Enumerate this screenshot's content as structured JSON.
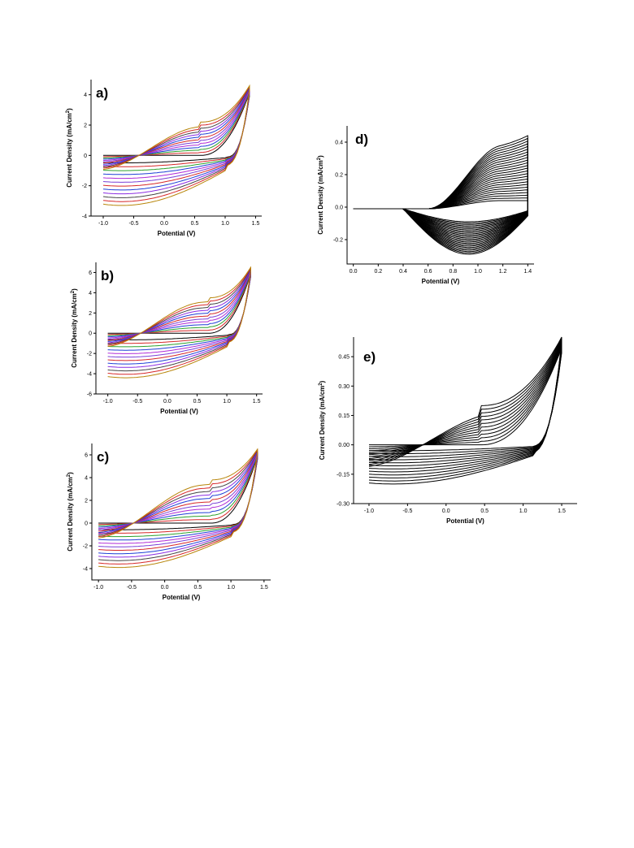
{
  "chart_data": [
    {
      "id": "a",
      "type": "line",
      "panel_label": "a)",
      "xlabel": "Potential (V)",
      "ylabel": "Current Density (mA/cm",
      "ylabel_sup": "2",
      "ylabel_close": ")",
      "xlim": [
        -1.2,
        1.6
      ],
      "ylim": [
        -4,
        5
      ],
      "xticks": [
        -1.0,
        -0.5,
        0.0,
        0.5,
        1.0,
        1.5
      ],
      "xtick_labels": [
        "-1.0",
        "-0.5",
        "0.0",
        "0.5",
        "1.0",
        "1.5"
      ],
      "yticks": [
        -4,
        -2,
        0,
        2,
        4
      ],
      "ytick_labels": [
        "-4",
        "-2",
        "0",
        "2",
        "4"
      ],
      "cycles": 12,
      "cycle_colors": [
        "#000000",
        "#d62728",
        "#2ca02c",
        "#1f3fd6",
        "#b02ad6",
        "#7a3fd6",
        "#d62728",
        "#1f3fd6",
        "#8a2be2",
        "#444444",
        "#d62728",
        "#b8860b"
      ],
      "curve_model": {
        "xmin": -1.0,
        "xmax": 1.4,
        "ymax": 4.6,
        "lower_min": -3.3,
        "upper_plateau": 2.2,
        "plateau_x": 0.6
      }
    },
    {
      "id": "b",
      "type": "line",
      "panel_label": "b)",
      "xlabel": "Potential (V)",
      "ylabel": "Current Density (mA/cm",
      "ylabel_sup": "2",
      "ylabel_close": ")",
      "xlim": [
        -1.2,
        1.6
      ],
      "ylim": [
        -6,
        7
      ],
      "xticks": [
        -1.0,
        -0.5,
        0.0,
        0.5,
        1.0,
        1.5
      ],
      "xtick_labels": [
        "-1.0",
        "-0.5",
        "0.0",
        "0.5",
        "1.0",
        "1.5"
      ],
      "yticks": [
        -6,
        -4,
        -2,
        0,
        2,
        4,
        6
      ],
      "ytick_labels": [
        "-6",
        "-4",
        "-2",
        "0",
        "2",
        "4",
        "6"
      ],
      "cycles": 12,
      "cycle_colors": [
        "#000000",
        "#d62728",
        "#2ca02c",
        "#1f3fd6",
        "#b02ad6",
        "#7a3fd6",
        "#d62728",
        "#1f3fd6",
        "#8a2be2",
        "#444444",
        "#d62728",
        "#b8860b"
      ],
      "curve_model": {
        "xmin": -1.0,
        "xmax": 1.4,
        "ymax": 6.5,
        "lower_min": -4.4,
        "upper_plateau": 3.5,
        "plateau_x": 0.7
      }
    },
    {
      "id": "c",
      "type": "line",
      "panel_label": "c)",
      "xlabel": "Potential (V)",
      "ylabel": "Current Density (mA/cm",
      "ylabel_sup": "2",
      "ylabel_close": ")",
      "xlim": [
        -1.1,
        1.6
      ],
      "ylim": [
        -5,
        7
      ],
      "xticks": [
        -1.0,
        -0.5,
        0.0,
        0.5,
        1.0,
        1.5
      ],
      "xtick_labels": [
        "-1.0",
        "-0.5",
        "0.0",
        "0.5",
        "1.0",
        "1.5"
      ],
      "yticks": [
        -4,
        -2,
        0,
        2,
        4,
        6
      ],
      "ytick_labels": [
        "-4",
        "-2",
        "0",
        "2",
        "4",
        "6"
      ],
      "cycles": 12,
      "cycle_colors": [
        "#000000",
        "#d62728",
        "#2ca02c",
        "#1f3fd6",
        "#b02ad6",
        "#7a3fd6",
        "#d62728",
        "#1f3fd6",
        "#8a2be2",
        "#444444",
        "#d62728",
        "#b8860b"
      ],
      "curve_model": {
        "xmin": -1.0,
        "xmax": 1.4,
        "ymax": 6.5,
        "lower_min": -3.9,
        "upper_plateau": 3.8,
        "plateau_x": 0.7
      }
    },
    {
      "id": "d",
      "type": "line",
      "panel_label": "d)",
      "xlabel": "Potential (V)",
      "ylabel": "Current Density (mA/cm",
      "ylabel_sup": "2",
      "ylabel_close": ")",
      "xlim": [
        -0.05,
        1.45
      ],
      "ylim": [
        -0.35,
        0.5
      ],
      "xticks": [
        0.0,
        0.2,
        0.4,
        0.6,
        0.8,
        1.0,
        1.2,
        1.4
      ],
      "xtick_labels": [
        "0.0",
        "0.2",
        "0.4",
        "0.6",
        "0.8",
        "1.0",
        "1.2",
        "1.4"
      ],
      "yticks": [
        -0.2,
        0.0,
        0.2,
        0.4
      ],
      "ytick_labels": [
        "-0.2",
        "0.0",
        "0.2",
        "0.4"
      ],
      "cycles": 25,
      "cycle_colors": [
        "#000000"
      ],
      "curve_model": {
        "xmin": 0.0,
        "xmax": 1.4,
        "ymax": 0.44,
        "lower_min": -0.28,
        "upper_plateau": 0.3,
        "onset": 0.6
      }
    },
    {
      "id": "e",
      "type": "line",
      "panel_label": "e)",
      "xlabel": "Potential (V)",
      "ylabel": "Current Density (mA/cm",
      "ylabel_sup": "2",
      "ylabel_close": ")",
      "xlim": [
        -1.2,
        1.7
      ],
      "ylim": [
        -0.3,
        0.55
      ],
      "xticks": [
        -1.0,
        -0.5,
        0.0,
        0.5,
        1.0,
        1.5
      ],
      "xtick_labels": [
        "-1.0",
        "-0.5",
        "0.0",
        "0.5",
        "1.0",
        "1.5"
      ],
      "yticks": [
        -0.3,
        -0.15,
        0.0,
        0.15,
        0.3,
        0.45
      ],
      "ytick_labels": [
        "-0.30",
        "-0.15",
        "0.00",
        "0.15",
        "0.30",
        "0.45"
      ],
      "cycles": 12,
      "cycle_colors": [
        "#000000"
      ],
      "curve_model": {
        "xmin": -1.0,
        "xmax": 1.5,
        "ymax": 0.55,
        "lower_min": -0.2,
        "upper_plateau": 0.2,
        "plateau_x": 0.45
      }
    }
  ]
}
